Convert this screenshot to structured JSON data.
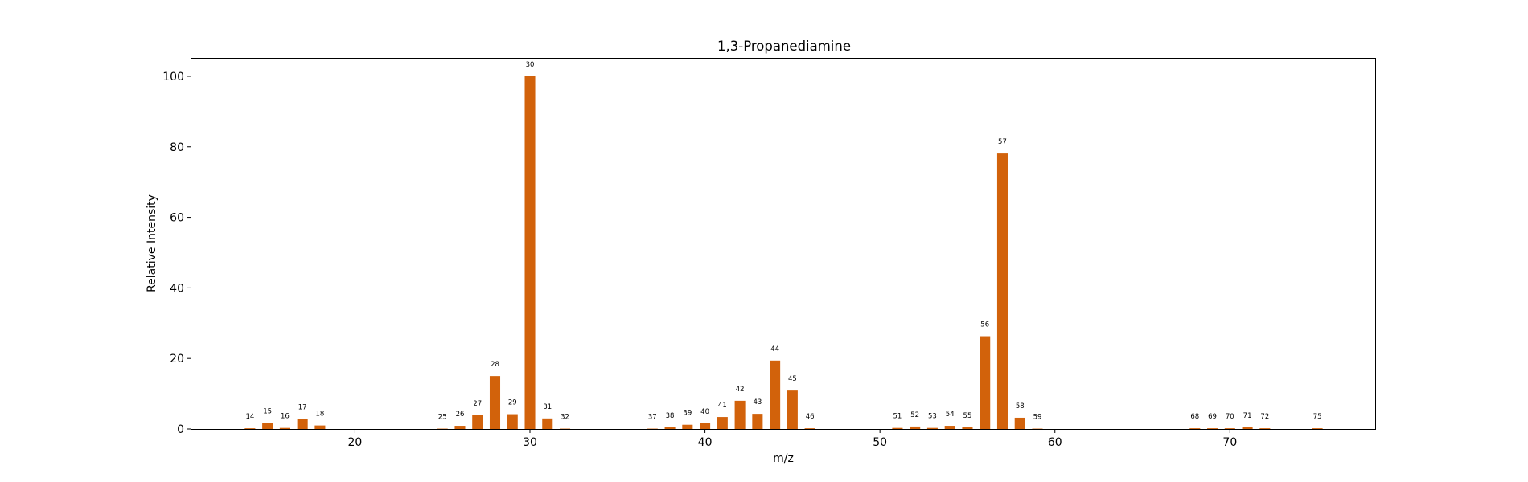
{
  "chart_data": {
    "type": "bar",
    "title": "1,3-Propanediamine",
    "xlabel": "m/z",
    "ylabel": "Relative Intensity",
    "xlim": [
      10.65,
      78.35
    ],
    "ylim": [
      0,
      105
    ],
    "xticks": [
      20,
      30,
      40,
      50,
      60,
      70
    ],
    "yticks": [
      0,
      20,
      40,
      60,
      80,
      100
    ],
    "bar_color": "#d2620b",
    "grid": false,
    "x": [
      14,
      15,
      16,
      17,
      18,
      25,
      26,
      27,
      28,
      29,
      30,
      31,
      32,
      37,
      38,
      39,
      40,
      41,
      42,
      43,
      44,
      45,
      46,
      51,
      52,
      53,
      54,
      55,
      56,
      57,
      58,
      59,
      68,
      69,
      70,
      71,
      72,
      75
    ],
    "values": [
      0.2,
      1.7,
      0.3,
      2.8,
      1.0,
      0.1,
      0.9,
      3.9,
      15.0,
      4.2,
      100.0,
      3.0,
      0.1,
      0.1,
      0.5,
      1.2,
      1.6,
      3.4,
      8.0,
      4.3,
      19.4,
      10.9,
      0.2,
      0.3,
      0.7,
      0.3,
      0.9,
      0.5,
      26.3,
      78.1,
      3.2,
      0.1,
      0.2,
      0.2,
      0.2,
      0.5,
      0.2,
      0.2
    ]
  }
}
